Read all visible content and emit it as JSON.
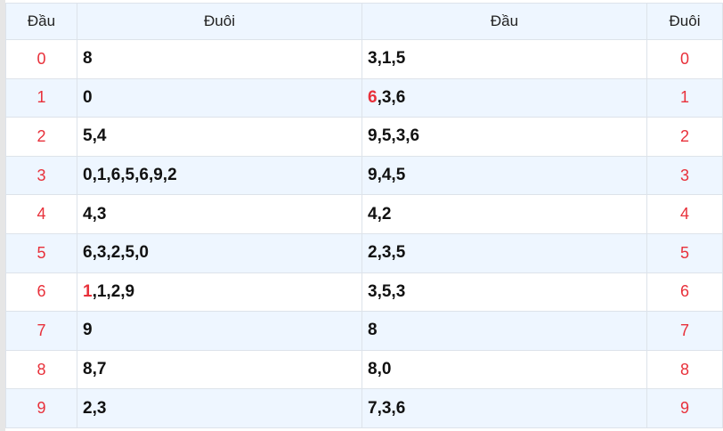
{
  "headers": [
    "Đầu",
    "Đuôi",
    "Đầu",
    "Đuôi"
  ],
  "rows": [
    {
      "dau": "0",
      "duoi": "8",
      "dau2": "3,1,5",
      "duoi2": "0"
    },
    {
      "dau": "1",
      "duoi": "0",
      "dau2_hl": "6",
      "dau2": ",3,6",
      "duoi2": "1"
    },
    {
      "dau": "2",
      "duoi": "5,4",
      "dau2": "9,5,3,6",
      "duoi2": "2"
    },
    {
      "dau": "3",
      "duoi": "0,1,6,5,6,9,2",
      "dau2": "9,4,5",
      "duoi2": "3"
    },
    {
      "dau": "4",
      "duoi": "4,3",
      "dau2": "4,2",
      "duoi2": "4"
    },
    {
      "dau": "5",
      "duoi": "6,3,2,5,0",
      "dau2": "2,3,5",
      "duoi2": "5"
    },
    {
      "dau": "6",
      "duoi_hl": "1",
      "duoi": ",1,2,9",
      "dau2": "3,5,3",
      "duoi2": "6"
    },
    {
      "dau": "7",
      "duoi": "9",
      "dau2": "8",
      "duoi2": "7"
    },
    {
      "dau": "8",
      "duoi": "8,7",
      "dau2": "8,0",
      "duoi2": "8"
    },
    {
      "dau": "9",
      "duoi": "2,3",
      "dau2": "7,3,6",
      "duoi2": "9"
    }
  ],
  "colors": {
    "highlight": "#e8303a",
    "stripe": "#eef6ff"
  }
}
